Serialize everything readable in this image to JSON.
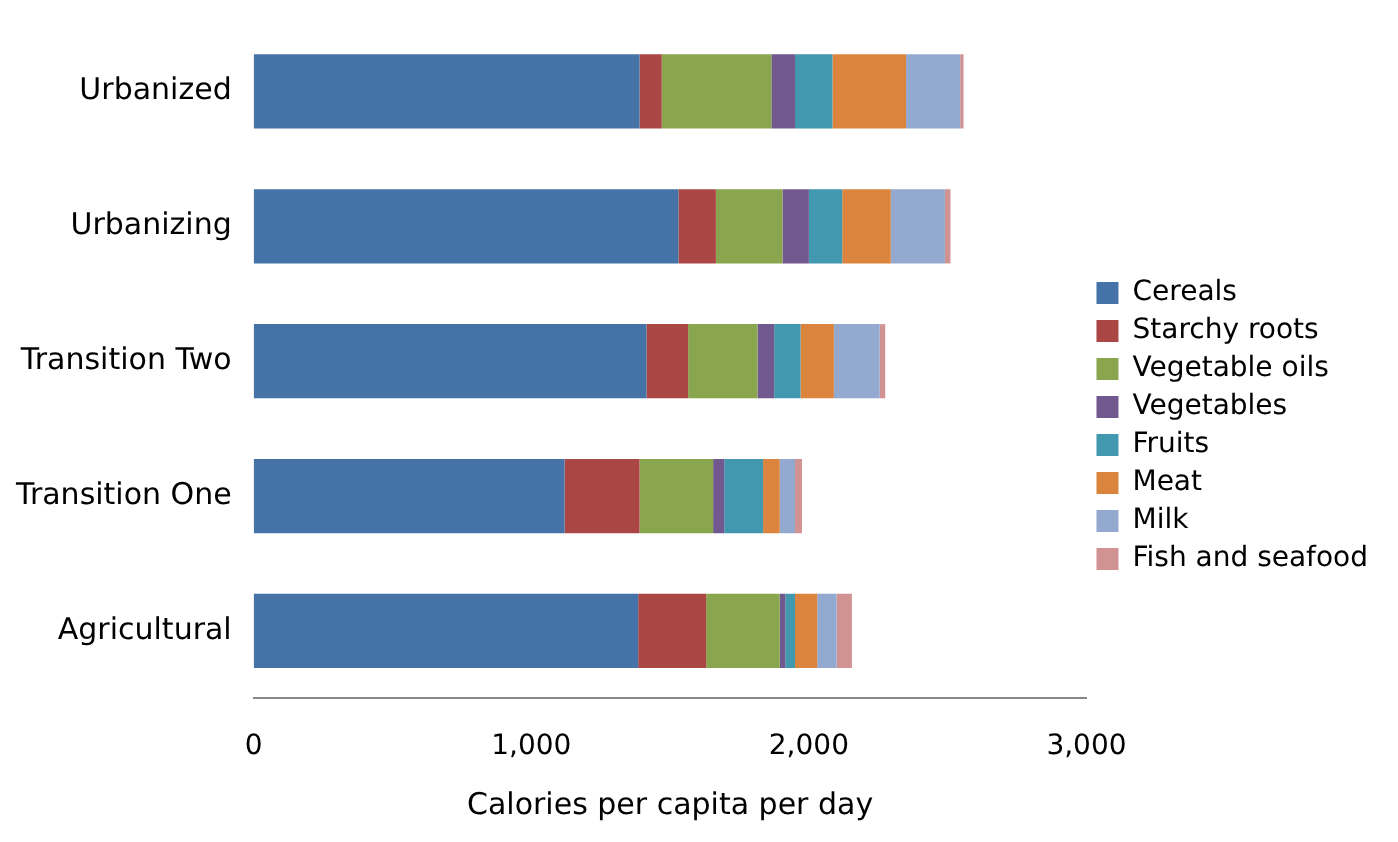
{
  "chart_data": {
    "type": "bar",
    "orientation": "horizontal",
    "stacked": true,
    "xlabel": "Calories per capita per day",
    "categories": [
      "Urbanized",
      "Urbanizing",
      "Transition Two",
      "Transition One",
      "Agricultural"
    ],
    "series": [
      {
        "name": "Cereals",
        "color": "#4572a7",
        "values": [
          1390,
          1530,
          1415,
          1120,
          1385
        ]
      },
      {
        "name": "Starchy roots",
        "color": "#aa4643",
        "values": [
          80,
          135,
          150,
          270,
          245
        ]
      },
      {
        "name": "Vegetable oils",
        "color": "#89a54e",
        "values": [
          395,
          240,
          250,
          265,
          265
        ]
      },
      {
        "name": "Vegetables",
        "color": "#71588f",
        "values": [
          85,
          95,
          60,
          40,
          20
        ]
      },
      {
        "name": "Fruits",
        "color": "#4198af",
        "values": [
          135,
          120,
          95,
          140,
          35
        ]
      },
      {
        "name": "Meat",
        "color": "#db843d",
        "values": [
          265,
          175,
          120,
          60,
          80
        ]
      },
      {
        "name": "Milk",
        "color": "#93a9cf",
        "values": [
          195,
          195,
          165,
          55,
          70
        ]
      },
      {
        "name": "Fish and seafood",
        "color": "#d19392",
        "values": [
          12,
          20,
          20,
          25,
          55
        ]
      }
    ],
    "xlim": [
      0,
      3000
    ],
    "xticks": [
      {
        "value": 0,
        "label": "0"
      },
      {
        "value": 1000,
        "label": "1,000"
      },
      {
        "value": 2000,
        "label": "2,000"
      },
      {
        "value": 3000,
        "label": "3,000"
      }
    ],
    "grid": false,
    "legend": "right"
  }
}
